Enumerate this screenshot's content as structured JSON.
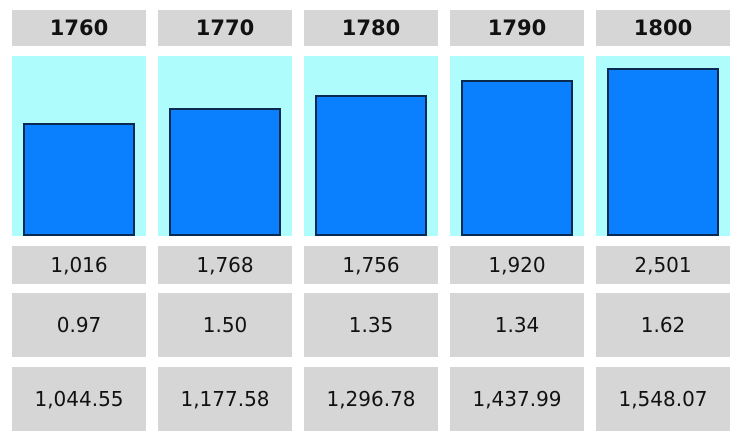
{
  "colors": {
    "cell_background": "#d6d6d6",
    "panel_background": "#aefcfc",
    "bar_fill": "#0a80ff",
    "bar_border": "#0b2a52",
    "text": "#111111"
  },
  "chart_data": {
    "type": "bar",
    "categories": [
      "1760",
      "1770",
      "1780",
      "1790",
      "1800"
    ],
    "series": [
      {
        "values": [
          1044.55,
          1177.58,
          1296.78,
          1437.99,
          1548.07
        ]
      }
    ],
    "row_1": [
      "1,016",
      "1,768",
      "1,756",
      "1,920",
      "2,501"
    ],
    "row_2": [
      "0.97",
      "1.50",
      "1.35",
      "1.34",
      "1.62"
    ],
    "row_3": [
      "1,044.55",
      "1,177.58",
      "1,296.78",
      "1,437.99",
      "1,548.07"
    ],
    "ylim": [
      0,
      1700
    ],
    "grid": false,
    "legend": "none"
  }
}
